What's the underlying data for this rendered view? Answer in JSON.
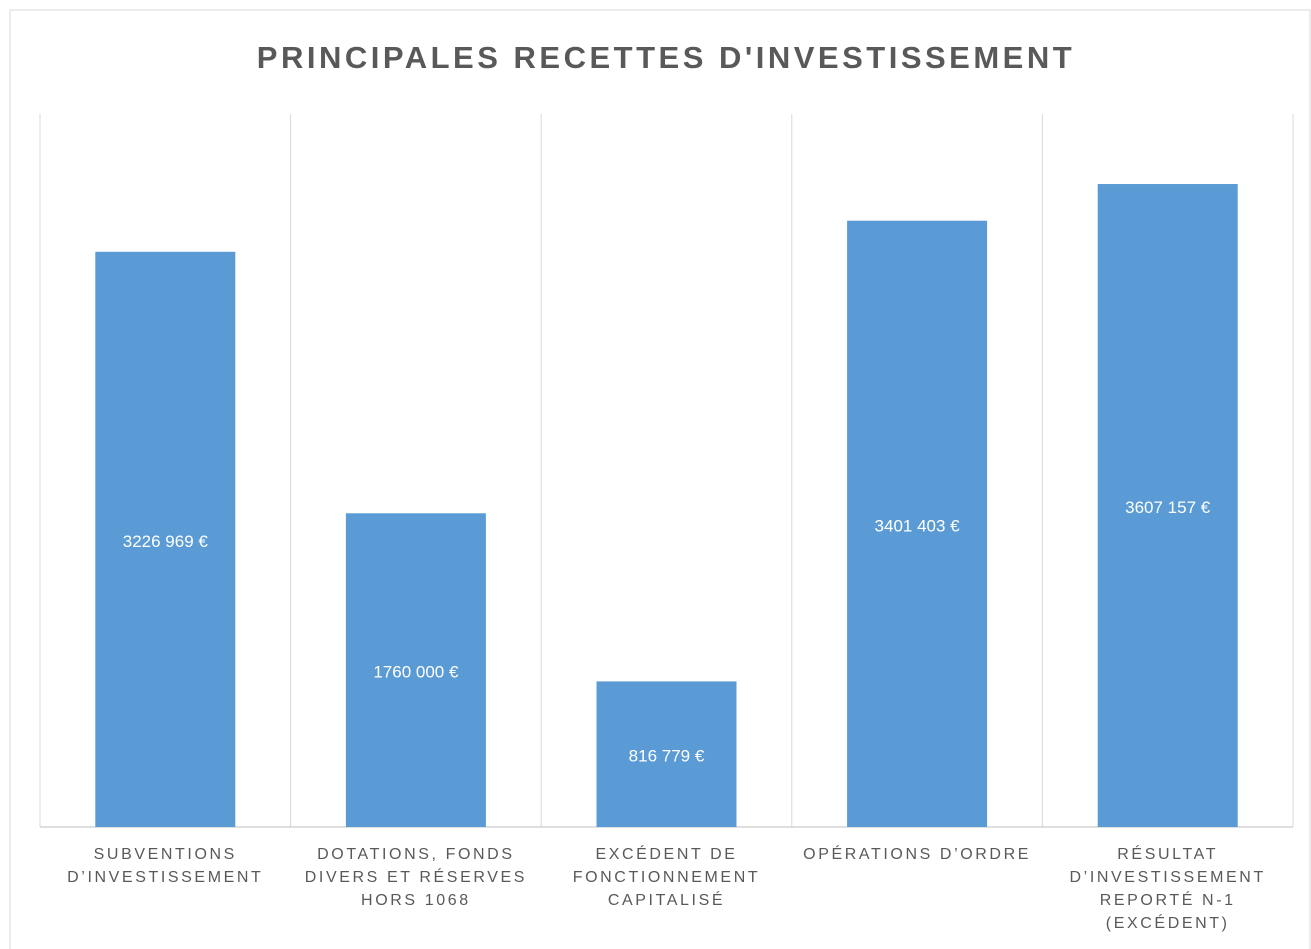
{
  "chart_data": {
    "type": "bar",
    "title": "PRINCIPALES RECETTES D'INVESTISSEMENT",
    "categories": [
      "SUBVENTIONS D’INVESTISSEMENT",
      "DOTATIONS, FONDS DIVERS ET RÉSERVES HORS 1068",
      "EXCÉDENT DE FONCTIONNEMENT CAPITALISÉ",
      "OPÉRATIONS D’ORDRE",
      "RÉSULTAT D’INVESTISSEMENT REPORTÉ N-1 (EXCÉDENT)"
    ],
    "values": [
      3226969,
      1760000,
      816779,
      3401403,
      3607157
    ],
    "value_labels": [
      "3226 969 €",
      "1760 000 €",
      "816 779 €",
      "3401 403 €",
      "3607 157 €"
    ],
    "color": "#5b9bd5",
    "ylim": [
      0,
      4000000
    ]
  }
}
